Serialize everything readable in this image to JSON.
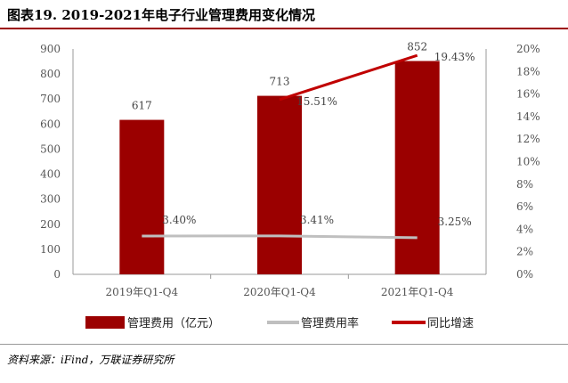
{
  "title": "图表19. 2019-2021年电子行业管理费用变化情况",
  "source": "资料来源：iFind，万联证券研究所",
  "colors": {
    "bar": "#9b0000",
    "rate": "#bfbfbf",
    "growth": "#c00000",
    "accent": "#9b0000"
  },
  "chart_data": {
    "type": "bar",
    "categories": [
      "2019年Q1-Q4",
      "2020年Q1-Q4",
      "2021年Q1-Q4"
    ],
    "series": [
      {
        "name": "管理费用（亿元）",
        "type": "bar",
        "axis": "left",
        "values": [
          617,
          713,
          852
        ],
        "labels": [
          "617",
          "713",
          "852"
        ]
      },
      {
        "name": "管理费用率",
        "type": "line",
        "axis": "right",
        "values": [
          3.4,
          3.41,
          3.25
        ],
        "labels": [
          "3.40%",
          "3.41%",
          "3.25%"
        ]
      },
      {
        "name": "同比增速",
        "type": "line",
        "axis": "right",
        "values": [
          null,
          15.51,
          19.43
        ],
        "labels": [
          "",
          "15.51%",
          "19.43%"
        ]
      }
    ],
    "ylim": [
      0,
      900
    ],
    "yticks": [
      "0",
      "100",
      "200",
      "300",
      "400",
      "500",
      "600",
      "700",
      "800",
      "900"
    ],
    "y2lim": [
      0,
      20
    ],
    "y2ticks": [
      "0%",
      "2%",
      "4%",
      "6%",
      "8%",
      "10%",
      "12%",
      "14%",
      "16%",
      "18%",
      "20%"
    ],
    "legend_position": "bottom",
    "grid": false
  }
}
